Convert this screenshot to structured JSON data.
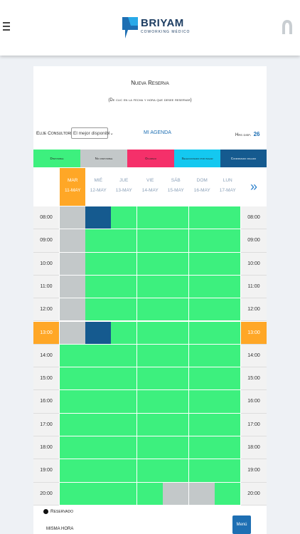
{
  "brand": {
    "name": "BRIYAM",
    "tagline": "COWORKING MÉDICO"
  },
  "icons": {
    "menu": "hamburger-icon",
    "avatar": "user-icon",
    "next": "double-chevron-right-icon",
    "reservado": "dot-icon"
  },
  "title": "Nueva Reserva",
  "subtitle": "(De clic en la fecha y hora que desee reservar)",
  "selector": {
    "label": "Elije Consultorio:",
    "value": "El mejor disponibl"
  },
  "agenda_link": "MI AGENDA",
  "hours": {
    "label": "Hrs disp.",
    "value": "26"
  },
  "legend": [
    {
      "label": "Disponible",
      "color": "#3df07e"
    },
    {
      "label": "No disponible",
      "color": "#c3c8c9"
    },
    {
      "label": "Ocupado",
      "color": "#f5306a"
    },
    {
      "label": "Seleccionado por pagar",
      "color": "#14c8f0"
    },
    {
      "label": "Confirmado pagado",
      "color": "#155a8f"
    }
  ],
  "days": [
    {
      "name": "MAR",
      "date": "11-MAY",
      "today": true
    },
    {
      "name": "MIÉ",
      "date": "12-MAY",
      "today": false
    },
    {
      "name": "JUE",
      "date": "13-MAY",
      "today": false
    },
    {
      "name": "VIE",
      "date": "14-MAY",
      "today": false
    },
    {
      "name": "SÁB",
      "date": "15-MAY",
      "today": false
    },
    {
      "name": "DOM",
      "date": "16-MAY",
      "today": false
    },
    {
      "name": "LUN",
      "date": "17-MAY",
      "today": false
    }
  ],
  "next_label": "»",
  "hours_rows": [
    "08:00",
    "09:00",
    "10:00",
    "11:00",
    "12:00",
    "13:00",
    "14:00",
    "15:00",
    "16:00",
    "17:00",
    "18:00",
    "19:00",
    "20:00"
  ],
  "current_hour": "13:00",
  "slots": [
    [
      "n",
      "c",
      "d",
      "d",
      "d",
      "d",
      "d"
    ],
    [
      "n",
      "d",
      "d",
      "d",
      "d",
      "d",
      "d"
    ],
    [
      "n",
      "d",
      "d",
      "d",
      "d",
      "d",
      "d"
    ],
    [
      "n",
      "d",
      "d",
      "d",
      "d",
      "d",
      "d"
    ],
    [
      "n",
      "d",
      "d",
      "d",
      "d",
      "d",
      "d"
    ],
    [
      "n",
      "c",
      "d",
      "d",
      "d",
      "d",
      "d"
    ],
    [
      "d",
      "d",
      "d",
      "d",
      "d",
      "d",
      "d"
    ],
    [
      "d",
      "d",
      "d",
      "d",
      "d",
      "d",
      "d"
    ],
    [
      "d",
      "d",
      "d",
      "d",
      "d",
      "d",
      "d"
    ],
    [
      "d",
      "d",
      "d",
      "d",
      "d",
      "d",
      "d"
    ],
    [
      "d",
      "d",
      "d",
      "d",
      "d",
      "d",
      "d"
    ],
    [
      "d",
      "d",
      "d",
      "d",
      "d",
      "d",
      "d"
    ],
    [
      "d",
      "d",
      "d",
      "d",
      "n",
      "n",
      "d"
    ]
  ],
  "footer": {
    "reservado": "Reservado",
    "misma_hora": "MISMA HORA",
    "menu_button": "Menú"
  }
}
